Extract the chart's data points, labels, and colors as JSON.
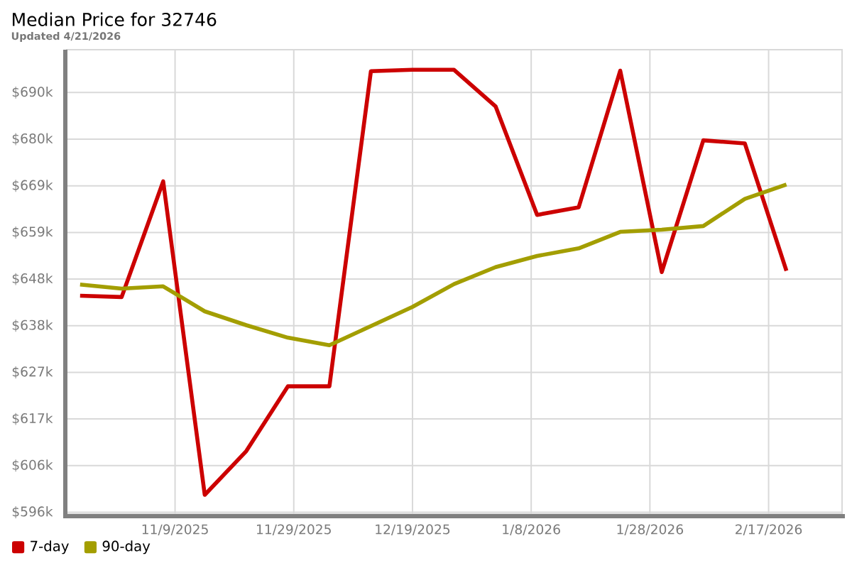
{
  "chart_data": {
    "type": "line",
    "title": "Median Price for 32746",
    "subtitle": "Updated 4/21/2026",
    "x": [
      "2025-10-24",
      "2025-10-31",
      "2025-11-07",
      "2025-11-14",
      "2025-11-21",
      "2025-11-28",
      "2025-12-05",
      "2025-12-12",
      "2025-12-19",
      "2025-12-26",
      "2026-01-02",
      "2026-01-09",
      "2026-01-16",
      "2026-01-23",
      "2026-01-30",
      "2026-02-06",
      "2026-02-13",
      "2026-02-20"
    ],
    "series": [
      {
        "name": "7-day",
        "color": "#cc0000",
        "values": [
          644500,
          644200,
          670100,
          599900,
          609700,
          624200,
          624200,
          694800,
          695100,
          695100,
          686900,
          662600,
          664300,
          694900,
          649800,
          679300,
          678600,
          650100
        ]
      },
      {
        "name": "90-day",
        "color": "#a39e00",
        "values": [
          647000,
          646100,
          646600,
          641000,
          637900,
          635100,
          633400,
          637700,
          642000,
          647100,
          650900,
          653400,
          655100,
          658800,
          659300,
          660100,
          666200,
          669400
        ]
      }
    ],
    "xlim": [
      "2025-10-21T18:00",
      "2026-03-01T09:00"
    ],
    "xticks": [
      {
        "value": "2025-11-09",
        "label": "11/9/2025"
      },
      {
        "value": "2025-11-29",
        "label": "11/29/2025"
      },
      {
        "value": "2025-12-19",
        "label": "12/19/2025"
      },
      {
        "value": "2026-01-08",
        "label": "1/8/2026"
      },
      {
        "value": "2026-01-28",
        "label": "1/28/2026"
      },
      {
        "value": "2026-02-17",
        "label": "2/17/2026"
      }
    ],
    "ylim": [
      595600,
      699600
    ],
    "yticks": [
      {
        "value": 596000,
        "label": "$596k"
      },
      {
        "value": 606444,
        "label": "$606k"
      },
      {
        "value": 616889,
        "label": "$617k"
      },
      {
        "value": 627333,
        "label": "$627k"
      },
      {
        "value": 637778,
        "label": "$638k"
      },
      {
        "value": 648222,
        "label": "$648k"
      },
      {
        "value": 658667,
        "label": "$659k"
      },
      {
        "value": 669111,
        "label": "$669k"
      },
      {
        "value": 679556,
        "label": "$680k"
      },
      {
        "value": 690000,
        "label": "$690k"
      }
    ],
    "grid": true,
    "legend": "bottom"
  }
}
